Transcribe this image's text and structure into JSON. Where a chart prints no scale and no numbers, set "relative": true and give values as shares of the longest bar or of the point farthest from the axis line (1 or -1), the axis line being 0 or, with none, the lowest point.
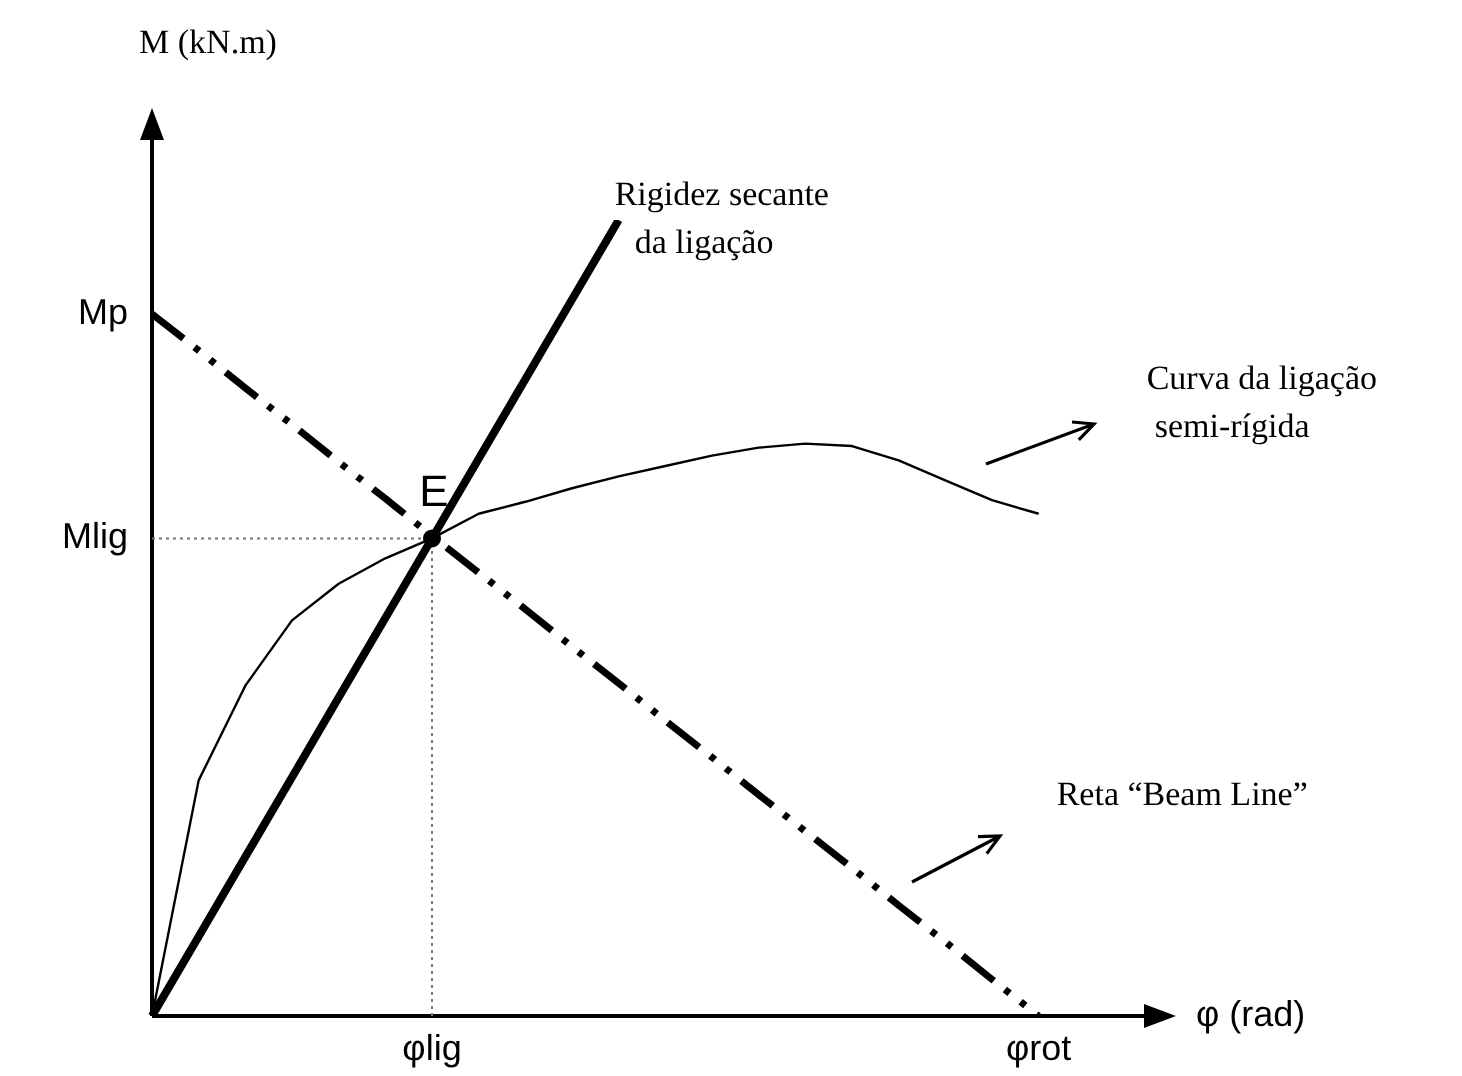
{
  "chart_data": {
    "type": "line",
    "relative": true,
    "ylabel": "M (kN.m)",
    "xlabel": "φ (rad)",
    "legend": false,
    "categories": [
      null,
      null,
      null,
      null,
      null,
      null,
      "φlig",
      null,
      null,
      null,
      null,
      null,
      null,
      null,
      null,
      null,
      null,
      null,
      null,
      "φrot",
      null,
      null
    ],
    "ref_lines": [
      {
        "axis": "y",
        "value": 0.6,
        "label": "Mlig",
        "color": "#777777",
        "line_style": "dotted"
      },
      {
        "axis": "x",
        "value": "φlig",
        "color": "#777777",
        "line_style": "dotted"
      }
    ],
    "series": [
      {
        "name": "Rigidez secante da ligação",
        "color": "#000000",
        "marker": "none",
        "line_style": "solid",
        "values": [
          0,
          0.1,
          0.2,
          0.3,
          0.4,
          0.5,
          0.6,
          0.7,
          0.8,
          0.9,
          1,
          null,
          null,
          null,
          null,
          null,
          null,
          null,
          null,
          null,
          null,
          null
        ]
      },
      {
        "name": "Curva da ligação semi-rígida",
        "color": "#000000",
        "marker": "none",
        "line_style": "solid",
        "values": [
          0,
          0.296,
          0.415,
          0.497,
          0.543,
          0.575,
          0.6,
          0.631,
          0.646,
          0.663,
          0.678,
          0.691,
          0.704,
          0.714,
          0.719,
          0.716,
          0.698,
          0.673,
          0.648,
          0.631,
          null,
          null
        ]
      },
      {
        "name": "Reta “Beam Line”",
        "color": "#000000",
        "marker": "none",
        "line_style": "dashed",
        "values": [
          0.882,
          0.836,
          0.789,
          0.743,
          0.696,
          0.65,
          0.603,
          0.557,
          0.511,
          0.464,
          0.418,
          0.371,
          0.325,
          0.278,
          0.232,
          0.186,
          0.139,
          0.093,
          0.046,
          0,
          null,
          null
        ]
      }
    ],
    "annotations": [
      {
        "text": "E",
        "x": "φlig",
        "y": 0.6
      },
      "Mp"
    ]
  }
}
